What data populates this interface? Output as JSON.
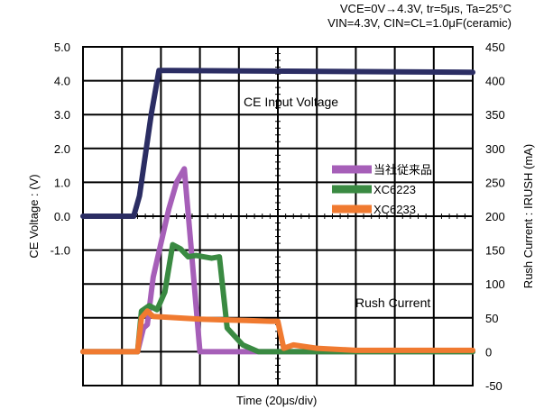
{
  "header": {
    "conditions_line1": "VCE=0V→4.3V, tr=5μs, Ta=25°C",
    "conditions_line2": "VIN=4.3V, CIN=CL=1.0μF(ceramic)"
  },
  "chart_data": {
    "type": "line",
    "title": "",
    "xlabel": "Time (20μs/div)",
    "ylabel_left": "CE Voltage : (V)",
    "ylabel_right": "Rush Current : IRUSH (mA)",
    "left_ticks": [
      "5.0",
      "4.0",
      "3.0",
      "2.0",
      "1.0",
      "0.0",
      "-1.0"
    ],
    "right_ticks": [
      "450",
      "400",
      "350",
      "300",
      "250",
      "200",
      "150",
      "100",
      "50",
      "0",
      "-50"
    ],
    "right_ylim": [
      -50,
      450
    ],
    "x_divisions": 10,
    "grid": true,
    "legend_position": "right-center",
    "series": [
      {
        "name": "CE Input Voltage",
        "color": "#2b2d63",
        "axis": "left",
        "x": [
          0,
          1.3,
          1.45,
          1.75,
          1.95,
          2.25,
          10
        ],
        "y": [
          0.0,
          0.0,
          0.6,
          3.0,
          4.3,
          4.3,
          4.25
        ]
      },
      {
        "name": "当社従来品",
        "color": "#a65fb8",
        "axis": "right",
        "x": [
          0,
          1.4,
          1.55,
          1.65,
          1.8,
          2.0,
          2.2,
          2.4,
          2.6,
          2.75,
          3.0,
          3.2,
          3.5,
          10
        ],
        "y": [
          0,
          0,
          35,
          40,
          110,
          160,
          210,
          250,
          270,
          170,
          0,
          0,
          0,
          0
        ]
      },
      {
        "name": "XC6223",
        "color": "#3a8a42",
        "axis": "right",
        "x": [
          0,
          1.4,
          1.5,
          1.7,
          1.9,
          2.1,
          2.3,
          2.5,
          2.7,
          2.9,
          3.3,
          3.5,
          3.7,
          4.1,
          4.5,
          10
        ],
        "y": [
          0,
          0,
          60,
          68,
          62,
          88,
          158,
          152,
          140,
          142,
          138,
          140,
          35,
          10,
          0,
          0
        ]
      },
      {
        "name": "XC6233",
        "color": "#f07a30",
        "axis": "right",
        "x": [
          0,
          1.4,
          1.5,
          1.65,
          1.8,
          2.4,
          3.0,
          3.6,
          4.2,
          4.8,
          5.0,
          5.15,
          5.4,
          6.0,
          7.0,
          10
        ],
        "y": [
          0,
          0,
          50,
          60,
          52,
          50,
          48,
          47,
          46,
          45,
          45,
          5,
          10,
          5,
          2,
          2
        ]
      }
    ],
    "annotations": [
      "CE Input Voltage",
      "Rush Current"
    ]
  }
}
